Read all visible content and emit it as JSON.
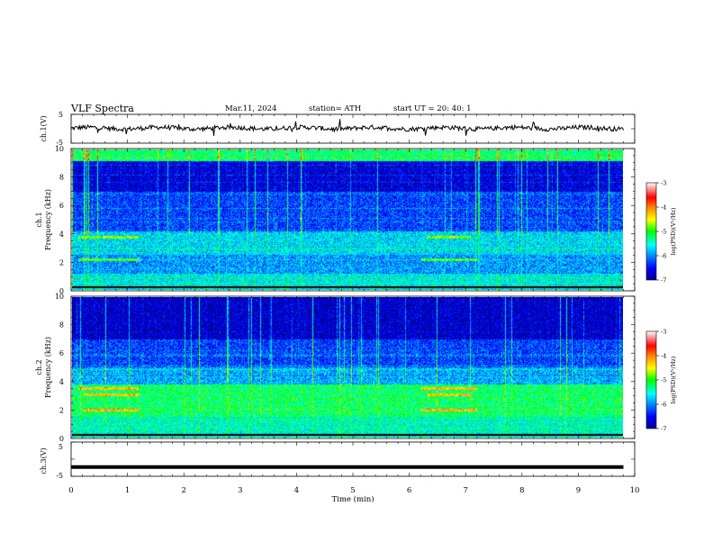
{
  "header": {
    "title": "VLF  Spectra",
    "date": "Mar.11, 2024",
    "station": "station= ATH",
    "start": "start  UT  =    20: 40: 1"
  },
  "chart_data": [
    {
      "type": "line",
      "id": "ch1",
      "ylabel": "ch.1(V)",
      "ylim": [
        -5,
        5
      ],
      "yticks": [
        "5",
        "-5"
      ],
      "series": [
        {
          "values_note": "",
          "baseline": 0.2,
          "color": "#000000"
        }
      ]
    },
    {
      "type": "heatmap",
      "id": "spec1",
      "ylabel": "ch.1\nFrequency (kHz)",
      "ylim": [
        0,
        10
      ],
      "yticks": [
        "0",
        "2",
        "4",
        "6",
        "8",
        "10"
      ],
      "colorbar": {
        "label": "log(PSD)(V²/Hz)",
        "ticks": [
          "-3",
          "-4",
          "-5",
          "-6",
          "-7"
        ],
        "range": [
          -7,
          -3
        ]
      },
      "bands": [
        {
          "f": 3.8,
          "t0": 0.1,
          "t1": 1.2
        },
        {
          "f": 3.8,
          "t0": 6.3,
          "t1": 7.1
        },
        {
          "f": 2.2,
          "t0": 0.1,
          "t1": 1.2
        },
        {
          "f": 2.2,
          "t0": 6.2,
          "t1": 7.2
        }
      ]
    },
    {
      "type": "heatmap",
      "id": "spec2",
      "ylabel": "ch.2\nFrequency (kHz)",
      "ylim": [
        0,
        10
      ],
      "yticks": [
        "0",
        "2",
        "4",
        "6",
        "8",
        "10"
      ],
      "colorbar": {
        "label": "log(PSD)(V²/Hz)",
        "ticks": [
          "-3",
          "-4",
          "-5",
          "-6",
          "-7"
        ],
        "range": [
          -7,
          -3
        ]
      },
      "bands": [
        {
          "f": 3.5,
          "t0": 0.1,
          "t1": 1.2
        },
        {
          "f": 3.1,
          "t0": 0.2,
          "t1": 1.2
        },
        {
          "f": 2.0,
          "t0": 0.2,
          "t1": 1.2
        },
        {
          "f": 3.5,
          "t0": 6.2,
          "t1": 7.2
        },
        {
          "f": 3.1,
          "t0": 6.3,
          "t1": 7.1
        },
        {
          "f": 2.0,
          "t0": 6.2,
          "t1": 7.2
        }
      ]
    },
    {
      "type": "line",
      "id": "ch3",
      "ylabel": "ch.3(V)",
      "ylim": [
        -5,
        5
      ],
      "yticks": [
        "5",
        "-5"
      ],
      "series": [
        {
          "baseline": -2.3,
          "color": "#000000"
        }
      ]
    }
  ],
  "xaxis": {
    "label": "Time  (min)",
    "range": [
      0,
      10
    ],
    "ticks": [
      "0",
      "1",
      "2",
      "3",
      "4",
      "5",
      "6",
      "7",
      "8",
      "9",
      "10"
    ],
    "data_end": 9.8
  }
}
